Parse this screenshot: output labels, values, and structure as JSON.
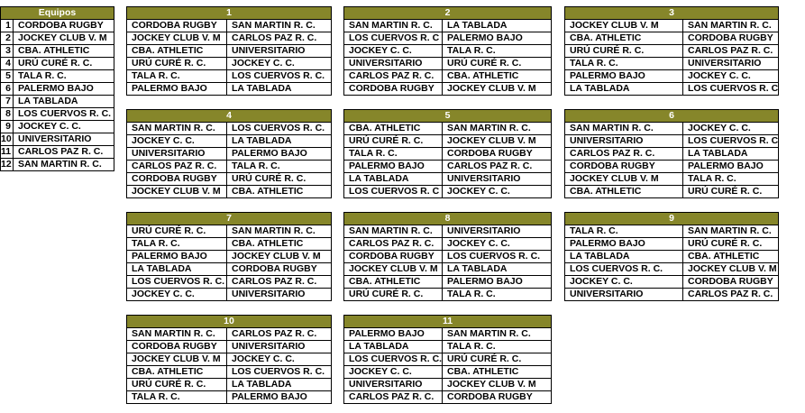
{
  "teams": {
    "header": "Equipos",
    "rows": [
      {
        "num": 1,
        "name": "CORDOBA RUGBY"
      },
      {
        "num": 2,
        "name": "JOCKEY CLUB V. M"
      },
      {
        "num": 3,
        "name": "CBA. ATHLETIC"
      },
      {
        "num": 4,
        "name": "URÚ CURÉ R. C."
      },
      {
        "num": 5,
        "name": "TALA R. C."
      },
      {
        "num": 6,
        "name": "PALERMO BAJO"
      },
      {
        "num": 7,
        "name": "LA TABLADA"
      },
      {
        "num": 8,
        "name": "LOS CUERVOS R. C."
      },
      {
        "num": 9,
        "name": "JOCKEY C. C."
      },
      {
        "num": 10,
        "name": "UNIVERSITARIO"
      },
      {
        "num": 11,
        "name": "CARLOS PAZ R. C."
      },
      {
        "num": 12,
        "name": "SAN MARTIN R. C."
      }
    ]
  },
  "rounds": [
    {
      "title": 1,
      "matches": [
        [
          "CORDOBA RUGBY",
          "SAN MARTIN R. C."
        ],
        [
          "JOCKEY CLUB V. M",
          "CARLOS PAZ R. C."
        ],
        [
          "CBA. ATHLETIC",
          "UNIVERSITARIO"
        ],
        [
          "URÚ CURÉ R. C.",
          "JOCKEY C. C."
        ],
        [
          "TALA R. C.",
          "LOS CUERVOS R. C."
        ],
        [
          "PALERMO BAJO",
          "LA TABLADA"
        ]
      ]
    },
    {
      "title": 2,
      "matches": [
        [
          "SAN MARTIN R. C.",
          "LA TABLADA"
        ],
        [
          "LOS CUERVOS R. C",
          "PALERMO BAJO"
        ],
        [
          "JOCKEY C. C.",
          "TALA R. C."
        ],
        [
          "UNIVERSITARIO",
          "URÚ CURÉ R. C."
        ],
        [
          "CARLOS PAZ R. C.",
          "CBA. ATHLETIC"
        ],
        [
          "CORDOBA RUGBY",
          "JOCKEY CLUB V. M"
        ]
      ]
    },
    {
      "title": 3,
      "matches": [
        [
          "JOCKEY CLUB V. M",
          "SAN MARTIN R. C."
        ],
        [
          "CBA. ATHLETIC",
          "CORDOBA RUGBY"
        ],
        [
          "URÚ CURÉ R. C.",
          "CARLOS PAZ R. C."
        ],
        [
          "TALA R. C.",
          "UNIVERSITARIO"
        ],
        [
          "PALERMO BAJO",
          "JOCKEY C. C."
        ],
        [
          "LA TABLADA",
          "LOS CUERVOS R. C."
        ]
      ]
    },
    {
      "title": 4,
      "matches": [
        [
          "SAN MARTIN R. C.",
          "LOS CUERVOS R. C."
        ],
        [
          "JOCKEY C. C.",
          "LA TABLADA"
        ],
        [
          "UNIVERSITARIO",
          "PALERMO BAJO"
        ],
        [
          "CARLOS PAZ R. C.",
          "TALA R. C."
        ],
        [
          "CORDOBA RUGBY",
          "URÚ CURÉ R. C."
        ],
        [
          "JOCKEY CLUB V. M",
          "CBA. ATHLETIC"
        ]
      ]
    },
    {
      "title": 5,
      "matches": [
        [
          "CBA. ATHLETIC",
          "SAN MARTIN R. C."
        ],
        [
          "URÚ CURÉ R. C.",
          "JOCKEY CLUB V. M"
        ],
        [
          "TALA R. C.",
          "CORDOBA RUGBY"
        ],
        [
          "PALERMO BAJO",
          "CARLOS PAZ R. C."
        ],
        [
          "LA TABLADA",
          "UNIVERSITARIO"
        ],
        [
          "LOS CUERVOS R. C",
          "JOCKEY C. C."
        ]
      ]
    },
    {
      "title": 6,
      "matches": [
        [
          "SAN MARTIN R. C.",
          "JOCKEY C. C."
        ],
        [
          "UNIVERSITARIO",
          "LOS CUERVOS R. C."
        ],
        [
          "CARLOS PAZ R. C.",
          "LA TABLADA"
        ],
        [
          "CORDOBA RUGBY",
          "PALERMO BAJO"
        ],
        [
          "JOCKEY CLUB V. M",
          "TALA R. C."
        ],
        [
          "CBA. ATHLETIC",
          "URÚ CURÉ R. C."
        ]
      ]
    },
    {
      "title": 7,
      "matches": [
        [
          "URÚ CURÉ R. C.",
          "SAN MARTIN R. C."
        ],
        [
          "TALA R. C.",
          "CBA. ATHLETIC"
        ],
        [
          "PALERMO BAJO",
          "JOCKEY CLUB V. M"
        ],
        [
          "LA TABLADA",
          "CORDOBA RUGBY"
        ],
        [
          "LOS CUERVOS R. C.",
          "CARLOS PAZ R. C."
        ],
        [
          "JOCKEY C. C.",
          "UNIVERSITARIO"
        ]
      ]
    },
    {
      "title": 8,
      "matches": [
        [
          "SAN MARTIN R. C.",
          "UNIVERSITARIO"
        ],
        [
          "CARLOS PAZ R. C.",
          "JOCKEY C. C."
        ],
        [
          "CORDOBA RUGBY",
          "LOS CUERVOS R. C."
        ],
        [
          "JOCKEY CLUB V. M",
          "LA TABLADA"
        ],
        [
          "CBA. ATHLETIC",
          "PALERMO BAJO"
        ],
        [
          "URÚ CURÉ R. C.",
          "TALA R. C."
        ]
      ]
    },
    {
      "title": 9,
      "matches": [
        [
          "TALA R. C.",
          "SAN MARTIN R. C."
        ],
        [
          "PALERMO BAJO",
          "URÚ CURÉ R. C."
        ],
        [
          "LA TABLADA",
          "CBA. ATHLETIC"
        ],
        [
          "LOS CUERVOS R. C.",
          "JOCKEY CLUB V. M"
        ],
        [
          "JOCKEY C. C.",
          "CORDOBA RUGBY"
        ],
        [
          "UNIVERSITARIO",
          "CARLOS PAZ R. C."
        ]
      ]
    },
    {
      "title": 10,
      "matches": [
        [
          "SAN MARTIN R. C.",
          "CARLOS PAZ R. C."
        ],
        [
          "CORDOBA RUGBY",
          "UNIVERSITARIO"
        ],
        [
          "JOCKEY CLUB V. M",
          "JOCKEY C. C."
        ],
        [
          "CBA. ATHLETIC",
          "LOS CUERVOS R. C."
        ],
        [
          "URÚ CURÉ R. C.",
          "LA TABLADA"
        ],
        [
          "TALA R. C.",
          "PALERMO BAJO"
        ]
      ]
    },
    {
      "title": 11,
      "matches": [
        [
          "PALERMO BAJO",
          "SAN MARTIN R. C."
        ],
        [
          "LA TABLADA",
          "TALA R. C."
        ],
        [
          "LOS CUERVOS R. C.",
          "URÚ CURÉ R. C."
        ],
        [
          "JOCKEY C. C.",
          "CBA. ATHLETIC"
        ],
        [
          "UNIVERSITARIO",
          "JOCKEY CLUB V. M"
        ],
        [
          "CARLOS PAZ R. C.",
          "CORDOBA RUGBY"
        ]
      ]
    }
  ]
}
